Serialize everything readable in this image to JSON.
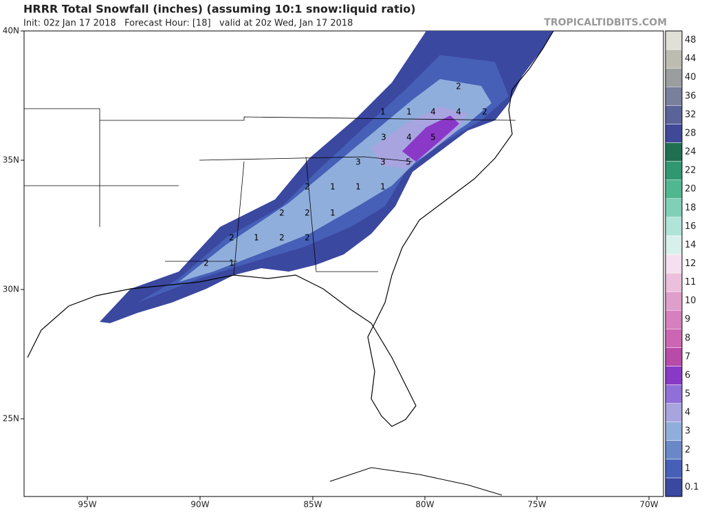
{
  "header": {
    "title": "HRRR Total Snowfall (inches) (assuming 10:1 snow:liquid ratio)",
    "subtitle": "Init: 02z Jan 17 2018   Forecast Hour: [18]   valid at 20z Wed, Jan 17 2018",
    "brand": "TROPICALTIDBITS.COM"
  },
  "axes": {
    "lat_labels": [
      "40N",
      "35N",
      "30N",
      "25N"
    ],
    "lon_labels": [
      "95W",
      "90W",
      "85W",
      "80W",
      "75W",
      "70W"
    ]
  },
  "colorbar": {
    "labels": [
      "0.1",
      "1",
      "2",
      "3",
      "4",
      "5",
      "6",
      "7",
      "8",
      "9",
      "10",
      "11",
      "12",
      "14",
      "16",
      "18",
      "20",
      "22",
      "24",
      "28",
      "32",
      "36",
      "40",
      "44",
      "48"
    ],
    "colors": [
      "#3b48a0",
      "#4660b8",
      "#6a88c8",
      "#90aedc",
      "#a8a4e0",
      "#9070d8",
      "#8a38c8",
      "#b84aa8",
      "#cc66b4",
      "#d680c0",
      "#e09ecc",
      "#ecc0dc",
      "#f4e0ee",
      "#d8f0ec",
      "#b0e4d8",
      "#80d0b8",
      "#50b890",
      "#309870",
      "#1e7050",
      "#404898",
      "#5a6498",
      "#78809c",
      "#9a9e9e",
      "#bcbcb0",
      "#e0e0d8"
    ]
  },
  "map_labels": [
    "2",
    "1",
    "1",
    "4",
    "4",
    "2",
    "3",
    "4",
    "5",
    "3",
    "3",
    "5",
    "2",
    "1",
    "1",
    "1",
    "2",
    "2",
    "1",
    "2",
    "1",
    "2",
    "2",
    "2",
    "1"
  ]
}
